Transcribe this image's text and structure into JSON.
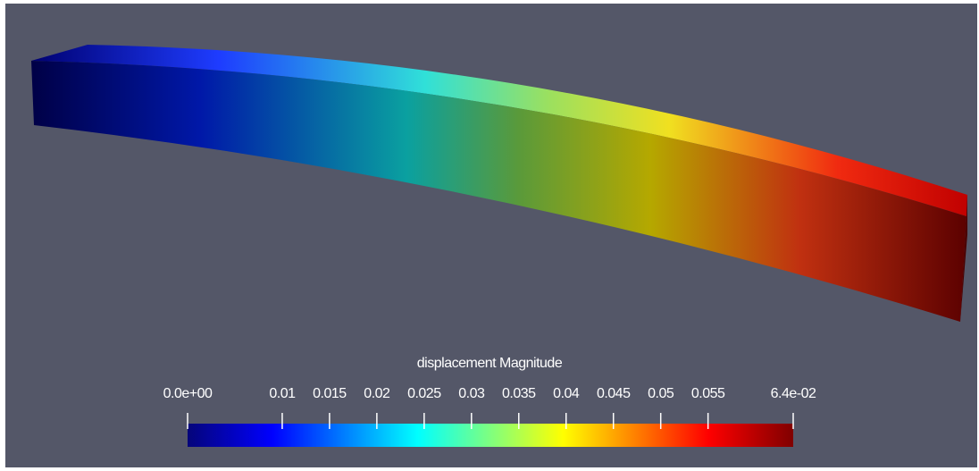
{
  "colorbar": {
    "title": "displacement Magnitude",
    "range": [
      0,
      0.064
    ],
    "ticks": [
      {
        "value": 0,
        "label": "0.0e+00"
      },
      0.01,
      0.015,
      0.02,
      0.025,
      0.03,
      0.035,
      0.04,
      0.045,
      0.05,
      0.055,
      {
        "value": 0.064,
        "label": "6.4e-02"
      }
    ]
  }
}
